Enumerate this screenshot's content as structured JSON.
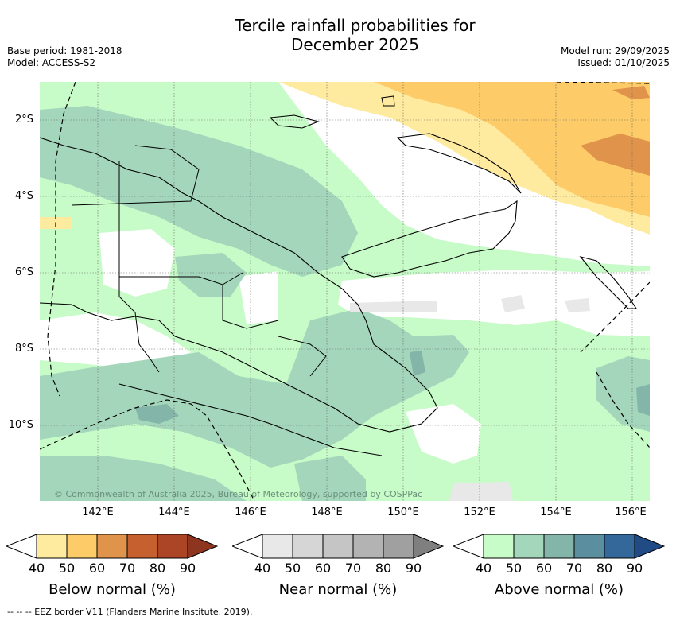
{
  "title_line1": "Tercile rainfall probabilities for",
  "title_line2": "December 2025",
  "base_period": "Base period: 1981-2018",
  "model": "Model: ACCESS-S2",
  "model_run": "Model run: 29/09/2025",
  "issued": "Issued: 01/10/2025",
  "credit": "© Commonwealth of Australia 2025, Bureau of Meteorology, supported by COSPPac",
  "lat_labels": [
    "2°S",
    "4°S",
    "6°S",
    "8°S",
    "10°S"
  ],
  "lon_labels": [
    "142°E",
    "144°E",
    "146°E",
    "148°E",
    "150°E",
    "152°E",
    "154°E",
    "156°E"
  ],
  "colorbars": [
    {
      "title": "Below normal (%)",
      "ticks": [
        "40",
        "50",
        "60",
        "70",
        "80",
        "90"
      ],
      "colors": [
        "#ffffff",
        "#ffeba0",
        "#fdcb67",
        "#e0934a",
        "#c6602e",
        "#ab4526",
        "#8e3520"
      ]
    },
    {
      "title": "Near normal (%)",
      "ticks": [
        "40",
        "50",
        "60",
        "70",
        "80",
        "90"
      ],
      "colors": [
        "#ffffff",
        "#e8e8e8",
        "#d6d6d6",
        "#c5c5c5",
        "#b3b3b3",
        "#a0a0a0",
        "#7f7f7f"
      ]
    },
    {
      "title": "Above normal (%)",
      "ticks": [
        "40",
        "50",
        "60",
        "70",
        "80",
        "90"
      ],
      "colors": [
        "#ffffff",
        "#c7fbc7",
        "#a3d6bb",
        "#83b5a9",
        "#5b8f9f",
        "#34689a",
        "#214b85"
      ]
    }
  ],
  "footnote": "-- -- -- EEZ border V11 (Flanders Marine Institute, 2019)."
}
